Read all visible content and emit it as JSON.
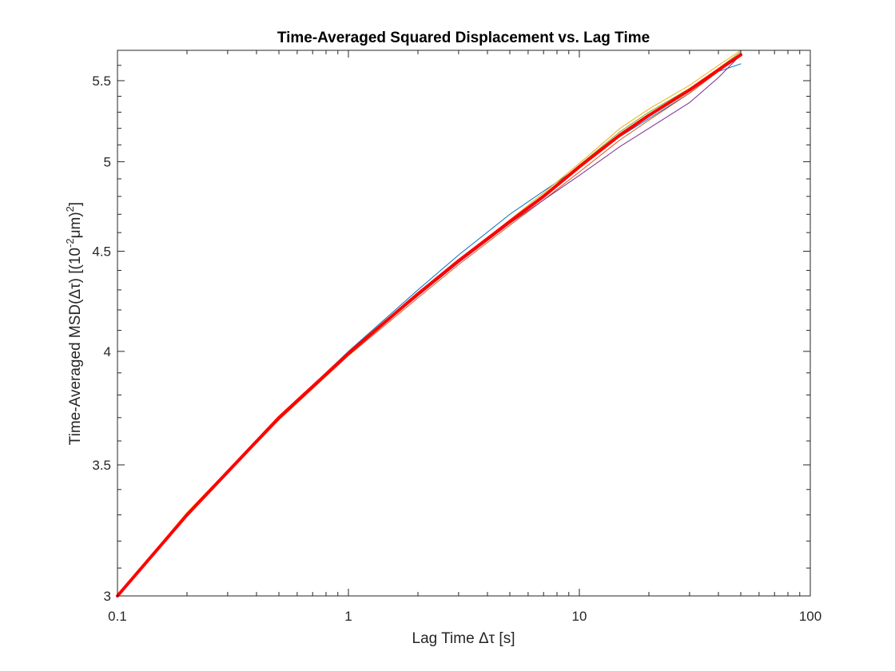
{
  "chart_data": {
    "type": "line",
    "title": "Time-Averaged Squared Displacement vs. Lag Time",
    "xlabel": "Lag Time Δτ [s]",
    "ylabel": {
      "prefix": "Time-Averaged MSD(Δτ) [(10",
      "exp1": "-2",
      "mid": "μm)",
      "exp2": "2",
      "suffix": "]"
    },
    "x_scale": "log",
    "y_scale": "log",
    "xlim": [
      0.1,
      100
    ],
    "ylim": [
      3,
      5.7
    ],
    "x_ticks": [
      0.1,
      1,
      10,
      100
    ],
    "x_tick_labels": [
      "0.1",
      "1",
      "10",
      "100"
    ],
    "y_ticks": [
      3,
      3.5,
      4,
      4.5,
      5,
      5.5
    ],
    "y_tick_labels": [
      "3",
      "3.5",
      "4",
      "4.5",
      "5",
      "5.5"
    ],
    "grid": false,
    "legend": "none",
    "series": [
      {
        "color": "#0072BD",
        "width": "thin",
        "x": [
          0.1,
          0.2,
          0.5,
          1,
          2,
          3,
          5,
          7,
          10,
          15,
          20,
          30,
          40,
          50
        ],
        "y": [
          3.0,
          3.3,
          3.7,
          4.0,
          4.3,
          4.48,
          4.7,
          4.83,
          4.97,
          5.15,
          5.26,
          5.42,
          5.56,
          5.61
        ]
      },
      {
        "color": "#D95319",
        "width": "thin",
        "x": [
          0.1,
          0.2,
          0.5,
          1,
          2,
          3,
          5,
          7,
          10,
          15,
          20,
          30,
          40,
          50
        ],
        "y": [
          3.0,
          3.3,
          3.69,
          3.98,
          4.26,
          4.43,
          4.64,
          4.78,
          4.94,
          5.13,
          5.25,
          5.42,
          5.56,
          5.68
        ]
      },
      {
        "color": "#EDB120",
        "width": "thin",
        "x": [
          0.1,
          0.2,
          0.5,
          1,
          2,
          3,
          5,
          7,
          10,
          15,
          20,
          30,
          40,
          50
        ],
        "y": [
          3.0,
          3.31,
          3.7,
          3.99,
          4.28,
          4.45,
          4.67,
          4.82,
          4.99,
          5.2,
          5.32,
          5.47,
          5.6,
          5.7
        ]
      },
      {
        "color": "#7E2F8E",
        "width": "thin",
        "x": [
          0.1,
          0.2,
          0.5,
          1,
          2,
          3,
          5,
          7,
          10,
          15,
          20,
          30,
          40,
          50
        ],
        "y": [
          3.0,
          3.3,
          3.7,
          3.99,
          4.27,
          4.44,
          4.65,
          4.78,
          4.92,
          5.09,
          5.2,
          5.36,
          5.52,
          5.67
        ]
      },
      {
        "color": "#77AC30",
        "width": "thin",
        "x": [
          0.1,
          0.2,
          0.5,
          1,
          2,
          3,
          5,
          7,
          10,
          15,
          20,
          30,
          40,
          50
        ],
        "y": [
          3.0,
          3.3,
          3.7,
          3.99,
          4.28,
          4.45,
          4.66,
          4.81,
          4.98,
          5.18,
          5.3,
          5.45,
          5.58,
          5.69
        ]
      },
      {
        "color": "#FF0000",
        "width": "thick",
        "x": [
          0.1,
          0.2,
          0.5,
          1,
          2,
          3,
          5,
          7,
          10,
          15,
          20,
          30,
          40,
          50
        ],
        "y": [
          3.0,
          3.3,
          3.7,
          3.99,
          4.28,
          4.45,
          4.66,
          4.8,
          4.97,
          5.16,
          5.28,
          5.44,
          5.57,
          5.67
        ]
      }
    ]
  }
}
